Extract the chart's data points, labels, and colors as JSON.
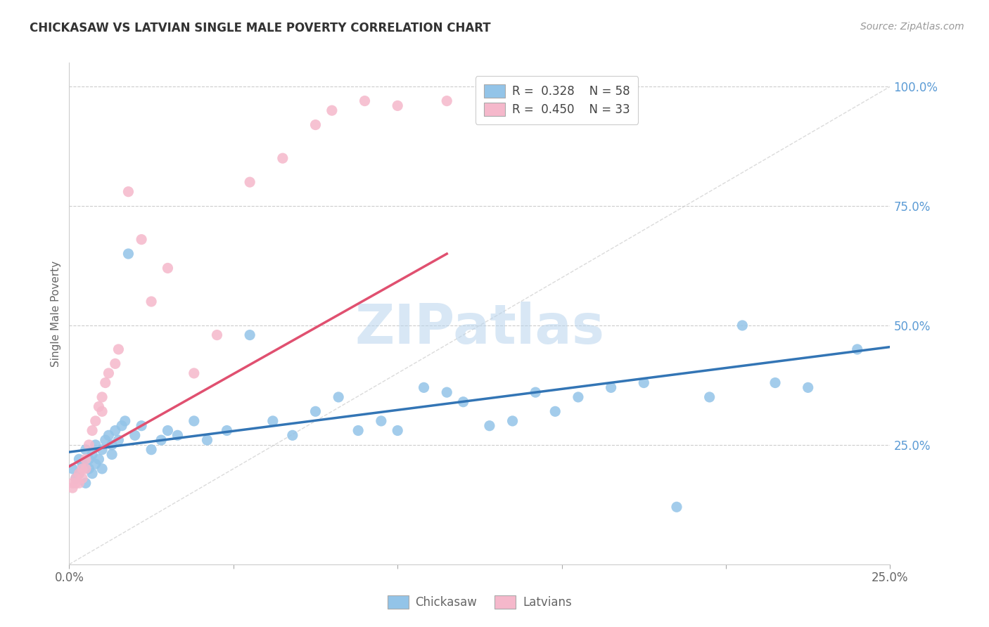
{
  "title": "CHICKASAW VS LATVIAN SINGLE MALE POVERTY CORRELATION CHART",
  "source": "Source: ZipAtlas.com",
  "ylabel": "Single Male Poverty",
  "ytick_values": [
    0.25,
    0.5,
    0.75,
    1.0
  ],
  "ytick_labels": [
    "25.0%",
    "50.0%",
    "75.0%",
    "100.0%"
  ],
  "xlim": [
    0.0,
    0.25
  ],
  "ylim": [
    0.0,
    1.05
  ],
  "blue_R": "0.328",
  "blue_N": "58",
  "pink_R": "0.450",
  "pink_N": "33",
  "blue_color": "#93c4e8",
  "pink_color": "#f5b8cb",
  "blue_line_color": "#3375b5",
  "pink_line_color": "#e05070",
  "diag_line_color": "#cccccc",
  "blue_line_x": [
    0.0,
    0.25
  ],
  "blue_line_y": [
    0.235,
    0.455
  ],
  "pink_line_x": [
    0.0,
    0.115
  ],
  "pink_line_y": [
    0.205,
    0.65
  ],
  "chickasaw_x": [
    0.001,
    0.002,
    0.003,
    0.003,
    0.004,
    0.005,
    0.005,
    0.006,
    0.006,
    0.007,
    0.007,
    0.008,
    0.008,
    0.009,
    0.01,
    0.01,
    0.011,
    0.012,
    0.013,
    0.013,
    0.014,
    0.015,
    0.016,
    0.017,
    0.018,
    0.02,
    0.022,
    0.025,
    0.028,
    0.03,
    0.033,
    0.038,
    0.042,
    0.048,
    0.055,
    0.062,
    0.068,
    0.075,
    0.082,
    0.088,
    0.095,
    0.1,
    0.108,
    0.115,
    0.12,
    0.128,
    0.135,
    0.142,
    0.148,
    0.155,
    0.165,
    0.175,
    0.185,
    0.195,
    0.205,
    0.215,
    0.225,
    0.24
  ],
  "chickasaw_y": [
    0.2,
    0.18,
    0.22,
    0.19,
    0.21,
    0.17,
    0.24,
    0.2,
    0.22,
    0.19,
    0.23,
    0.21,
    0.25,
    0.22,
    0.2,
    0.24,
    0.26,
    0.27,
    0.25,
    0.23,
    0.28,
    0.26,
    0.29,
    0.3,
    0.65,
    0.27,
    0.29,
    0.24,
    0.26,
    0.28,
    0.27,
    0.3,
    0.26,
    0.28,
    0.48,
    0.3,
    0.27,
    0.32,
    0.35,
    0.28,
    0.3,
    0.28,
    0.37,
    0.36,
    0.34,
    0.29,
    0.3,
    0.36,
    0.32,
    0.35,
    0.37,
    0.38,
    0.12,
    0.35,
    0.5,
    0.38,
    0.37,
    0.45
  ],
  "latvian_x": [
    0.001,
    0.001,
    0.002,
    0.002,
    0.003,
    0.003,
    0.004,
    0.004,
    0.005,
    0.005,
    0.006,
    0.007,
    0.008,
    0.009,
    0.01,
    0.01,
    0.011,
    0.012,
    0.014,
    0.015,
    0.018,
    0.022,
    0.025,
    0.03,
    0.038,
    0.045,
    0.055,
    0.065,
    0.075,
    0.08,
    0.09,
    0.1,
    0.115
  ],
  "latvian_y": [
    0.17,
    0.16,
    0.18,
    0.17,
    0.19,
    0.17,
    0.2,
    0.18,
    0.22,
    0.2,
    0.25,
    0.28,
    0.3,
    0.33,
    0.35,
    0.32,
    0.38,
    0.4,
    0.42,
    0.45,
    0.78,
    0.68,
    0.55,
    0.62,
    0.4,
    0.48,
    0.8,
    0.85,
    0.92,
    0.95,
    0.97,
    0.96,
    0.97
  ]
}
